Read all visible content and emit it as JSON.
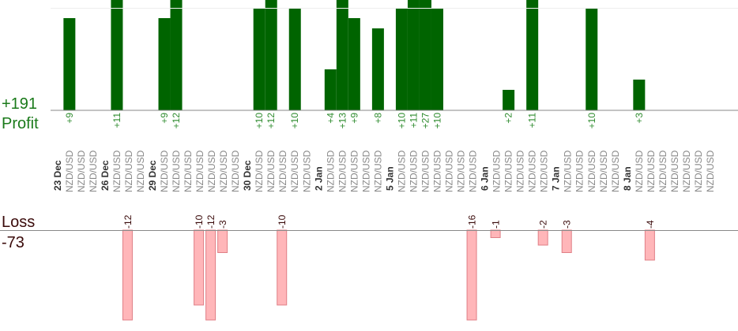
{
  "summary": {
    "profit_total": "+191",
    "profit_label": "Profit",
    "loss_label": "Loss",
    "loss_total": "-73"
  },
  "colors": {
    "profit_bar": "#006400",
    "profit_text": "#2e8b2e",
    "profit_summary": "#1a7a1a",
    "loss_bar": "#ffb6b9",
    "loss_bar_edge": "#e07f86",
    "loss_text": "#3a0a0a",
    "axis": "#888888",
    "date_text": "#333333",
    "pair_text": "#888888"
  },
  "chart_data": {
    "type": "bar",
    "categories": [
      "NZD/USD",
      "NZD/USD",
      "NZD/USD",
      "NZD/USD",
      "NZD/USD",
      "NZD/USD",
      "NZD/USD",
      "NZD/USD",
      "NZD/USD",
      "NZD/USD",
      "NZD/USD",
      "NZD/USD",
      "NZD/USD",
      "NZD/USD",
      "NZD/USD",
      "NZD/USD",
      "NZD/USD",
      "NZD/USD",
      "NZD/USD",
      "NZD/USD",
      "NZD/USD",
      "NZD/USD",
      "NZD/USD",
      "NZD/USD",
      "NZD/USD",
      "NZD/USD",
      "NZD/USD",
      "NZD/USD",
      "NZD/USD",
      "NZD/USD",
      "NZD/USD",
      "NZD/USD",
      "NZD/USD",
      "NZD/USD",
      "NZD/USD",
      "NZD/USD",
      "NZD/USD",
      "NZD/USD",
      "NZD/USD",
      "NZD/USD",
      "NZD/USD",
      "NZD/USD",
      "NZD/USD",
      "NZD/USD",
      "NZD/USD",
      "NZD/USD",
      "NZD/USD"
    ],
    "date_groups": [
      {
        "label": "23 Dec",
        "start": 0
      },
      {
        "label": "26 Dec",
        "start": 3
      },
      {
        "label": "29 Dec",
        "start": 6
      },
      {
        "label": "30 Dec",
        "start": 13
      },
      {
        "label": "2 Jan",
        "start": 18
      },
      {
        "label": "5 Jan",
        "start": 23
      },
      {
        "label": "6 Jan",
        "start": 30
      },
      {
        "label": "7 Jan",
        "start": 35
      },
      {
        "label": "8 Jan",
        "start": 40
      }
    ],
    "values": [
      9,
      null,
      null,
      11,
      -12,
      null,
      9,
      12,
      null,
      -10,
      -12,
      -3,
      null,
      10,
      12,
      -10,
      10,
      null,
      4,
      13,
      9,
      null,
      8,
      10,
      11,
      27,
      10,
      null,
      null,
      -16,
      -1,
      2,
      null,
      11,
      -2,
      -3,
      null,
      10,
      null,
      null,
      3,
      -4,
      null,
      null,
      null,
      null,
      null
    ],
    "value_labels": [
      "+9",
      "",
      "",
      "+11",
      "-12",
      "",
      "+9",
      "+12",
      "",
      "-10",
      "-12",
      "-3",
      "",
      "+10",
      "+12",
      "-10",
      "+10",
      "",
      "+4",
      "+13",
      "+9",
      "",
      "+8",
      "+10",
      "+11",
      "+27",
      "+10",
      "",
      "",
      "-16",
      "-1",
      "+2",
      "",
      "+11",
      "-2",
      "-3",
      "",
      "+10",
      "",
      "",
      "+3",
      "-4",
      "",
      "",
      "",
      "",
      ""
    ],
    "ylim": [
      -12,
      10
    ],
    "totals": {
      "profit": 191,
      "loss": -73
    }
  }
}
